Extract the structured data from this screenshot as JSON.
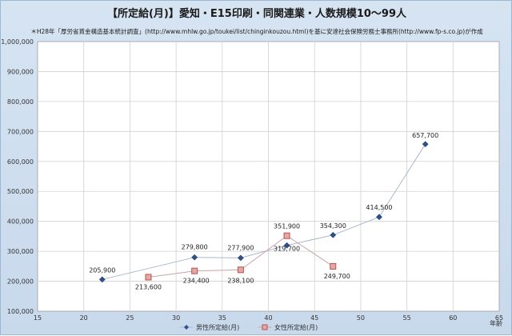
{
  "chart_data": {
    "type": "line",
    "title": "【所定給(月)】愛知・E15印刷・同関連業・人数規模10～99人",
    "subtitle": "＊H28年「厚労省賃金構造基本統計調査」(http://www.mhlw.go.jp/toukei/list/chinginkouzou.html)を基に安達社会保険労務士事務所(http://www.fp-s.co.jp)が作成",
    "xlabel": "年齢",
    "ylabel": "",
    "xlim": [
      15,
      65
    ],
    "ylim": [
      100000,
      1000000
    ],
    "xticks": [
      "15",
      "20",
      "25",
      "30",
      "35",
      "40",
      "45",
      "50",
      "55",
      "60",
      "65"
    ],
    "yticks": [
      "100,000",
      "200,000",
      "300,000",
      "400,000",
      "500,000",
      "600,000",
      "700,000",
      "800,000",
      "900,000",
      "1,000,000"
    ],
    "grid": true,
    "legend_position": "bottom",
    "series": [
      {
        "name": "男性所定給(月)",
        "color": "#2f4f8a",
        "marker": "diamond",
        "points": [
          {
            "x": 22,
            "y": 205900,
            "label": "205,900"
          },
          {
            "x": 32,
            "y": 279800,
            "label": "279,800"
          },
          {
            "x": 37,
            "y": 277900,
            "label": "277,900"
          },
          {
            "x": 42,
            "y": 319700,
            "label": "319,700"
          },
          {
            "x": 47,
            "y": 354300,
            "label": "354,300"
          },
          {
            "x": 52,
            "y": 414500,
            "label": "414,500"
          },
          {
            "x": 57,
            "y": 657700,
            "label": "657,700"
          }
        ]
      },
      {
        "name": "女性所定給(月)",
        "color": "#c0504d",
        "marker": "square",
        "points": [
          {
            "x": 27,
            "y": 213600,
            "label": "213,600"
          },
          {
            "x": 32,
            "y": 234400,
            "label": "234,400"
          },
          {
            "x": 37,
            "y": 238100,
            "label": "238,100"
          },
          {
            "x": 42,
            "y": 351900,
            "label": "351,900"
          },
          {
            "x": 47,
            "y": 249700,
            "label": "249,700"
          }
        ]
      }
    ]
  }
}
